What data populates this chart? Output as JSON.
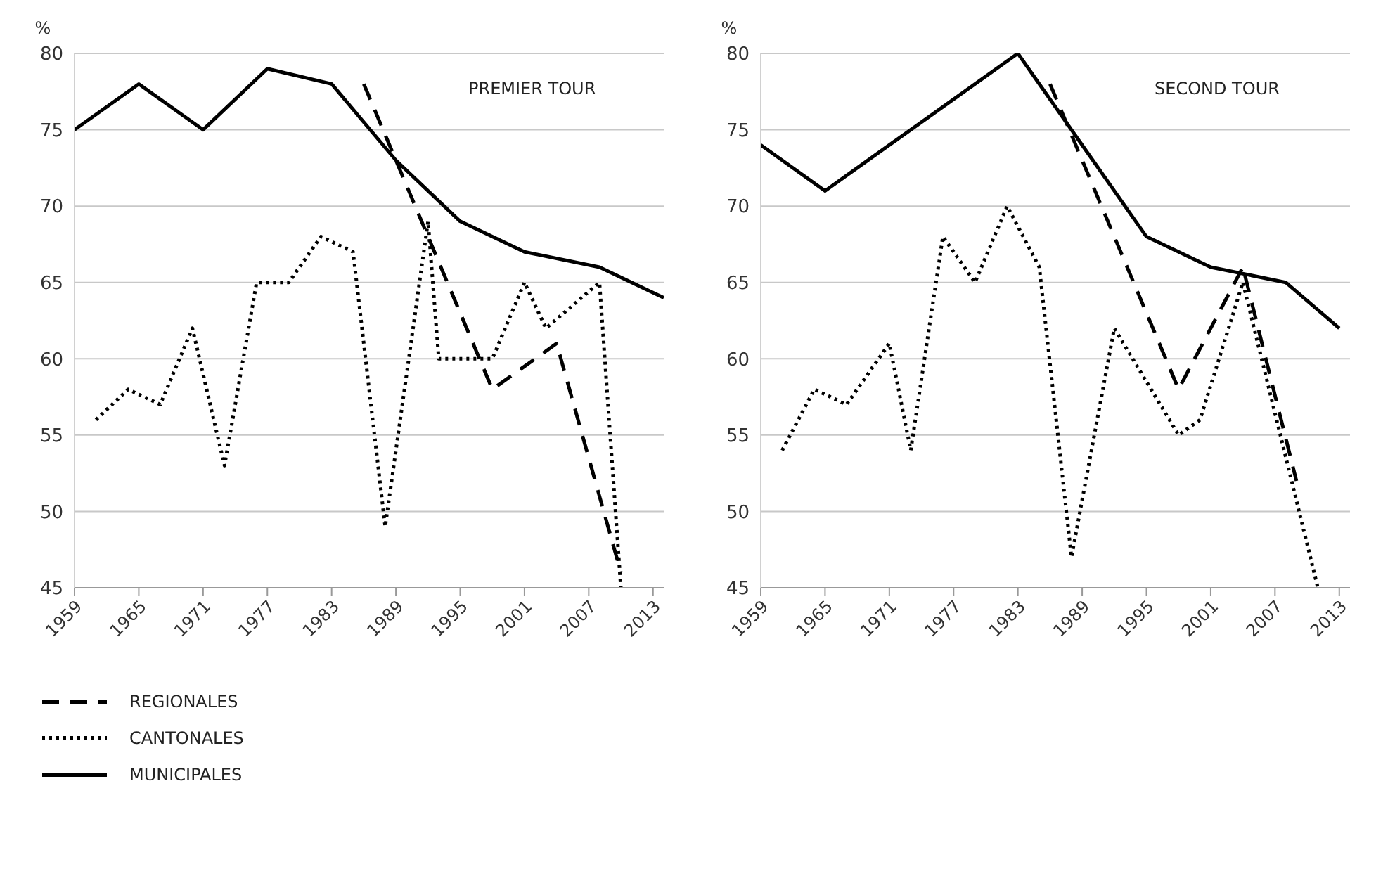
{
  "chart_data": [
    {
      "type": "line",
      "ylabel": "%",
      "annotations": [
        "PREMIER TOUR"
      ],
      "xlim": [
        1959,
        2014
      ],
      "xticks": [
        1959,
        1965,
        1971,
        1977,
        1983,
        1989,
        1995,
        2001,
        2007,
        2013
      ],
      "ylim": [
        45,
        80
      ],
      "yticks": [
        45,
        50,
        55,
        60,
        65,
        70,
        75,
        80
      ],
      "grid": "y",
      "legend": "bottom left",
      "marker": "none",
      "series": [
        {
          "name": "REGIONALES",
          "color": "#000000",
          "line_style": "dashed",
          "x": [
            1986,
            1998,
            2004,
            2010
          ],
          "values": [
            78,
            58,
            61,
            46
          ]
        },
        {
          "name": "CANTONALES",
          "color": "#000000",
          "line_style": "dotted",
          "x": [
            1961,
            1964,
            1967,
            1970,
            1973,
            1976,
            1979,
            1982,
            1985,
            1988,
            1992,
            1993,
            1998,
            2001,
            2003,
            2008,
            2010
          ],
          "values": [
            56,
            58,
            57,
            62,
            53,
            65,
            65,
            68,
            67,
            49,
            69,
            60,
            60,
            65,
            62,
            65,
            45
          ]
        },
        {
          "name": "MUNICIPALES",
          "color": "#000000",
          "line_style": "solid",
          "x": [
            1959,
            1965,
            1971,
            1977,
            1983,
            1989,
            1995,
            2001,
            2008,
            2014
          ],
          "values": [
            75,
            78,
            75,
            79,
            78,
            73,
            69,
            67,
            66,
            64
          ]
        }
      ]
    },
    {
      "type": "line",
      "ylabel": "%",
      "annotations": [
        "SECOND TOUR"
      ],
      "xlim": [
        1959,
        2014
      ],
      "xticks": [
        1959,
        1965,
        1971,
        1977,
        1983,
        1989,
        1995,
        2001,
        2007,
        2013
      ],
      "ylim": [
        45,
        80
      ],
      "yticks": [
        45,
        50,
        55,
        60,
        65,
        70,
        75,
        80
      ],
      "grid": "y",
      "marker": "none",
      "series": [
        {
          "color": "#000000",
          "line_style": "dashed",
          "x": [
            1986,
            1998,
            2004,
            2009
          ],
          "values": [
            78,
            58,
            66,
            52
          ]
        },
        {
          "color": "#000000",
          "line_style": "dotted",
          "x": [
            1961,
            1964,
            1967,
            1971,
            1973,
            1976,
            1979,
            1982,
            1985,
            1988,
            1992,
            1998,
            2000,
            2004,
            2011
          ],
          "values": [
            54,
            58,
            57,
            61,
            54,
            68,
            65,
            70,
            66,
            47,
            62,
            55,
            56,
            65,
            45
          ]
        },
        {
          "color": "#000000",
          "line_style": "solid",
          "x": [
            1959,
            1965,
            1983,
            1990,
            1995,
            2001,
            2008,
            2013
          ],
          "values": [
            74,
            71,
            80,
            73,
            68,
            66,
            65,
            62
          ]
        }
      ]
    }
  ]
}
